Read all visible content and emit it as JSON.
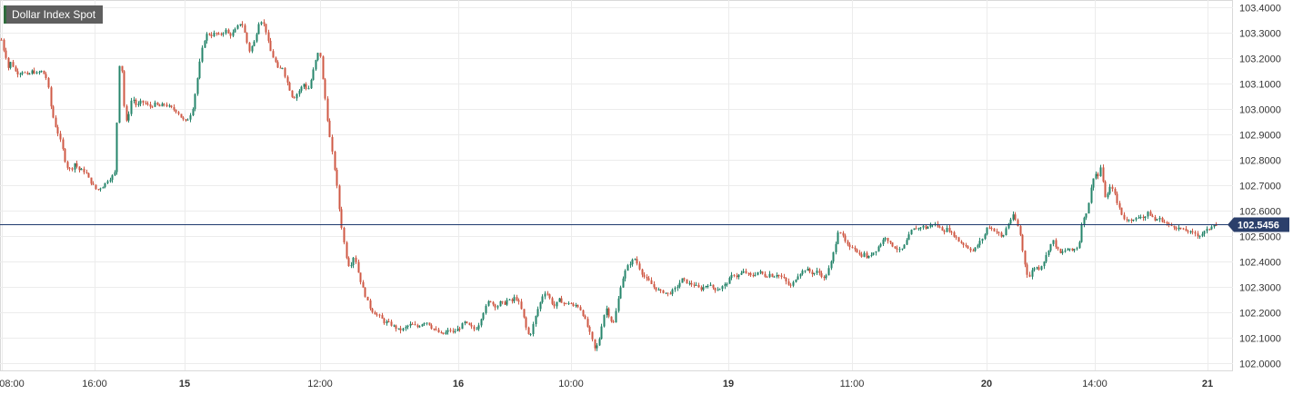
{
  "symbol": "Dollar Index Spot",
  "current_price_label": "102.5456",
  "colors": {
    "up": "#26856b",
    "down": "#cf5945",
    "price_line": "#1f3a6e",
    "grid": "#ececec",
    "label_bg": "#2b3f6b"
  },
  "chart_data": {
    "type": "candlestick",
    "title": "Dollar Index Spot",
    "xlabel": "",
    "ylabel": "",
    "ylim": [
      101.97,
      103.43
    ],
    "current_price": 102.5456,
    "y_ticks": [
      "103.4000",
      "103.3000",
      "103.2000",
      "103.1000",
      "103.0000",
      "102.9000",
      "102.8000",
      "102.7000",
      "102.6000",
      "102.5000",
      "102.4000",
      "102.3000",
      "102.2000",
      "102.1000",
      "102.0000"
    ],
    "x_ticks": [
      {
        "label": "08:00",
        "bold": false
      },
      {
        "label": "16:00",
        "bold": false
      },
      {
        "label": "15",
        "bold": true
      },
      {
        "label": "12:00",
        "bold": false
      },
      {
        "label": "16",
        "bold": true
      },
      {
        "label": "10:00",
        "bold": false
      },
      {
        "label": "19",
        "bold": true
      },
      {
        "label": "11:00",
        "bold": false
      },
      {
        "label": "20",
        "bold": true
      },
      {
        "label": "14:00",
        "bold": false
      },
      {
        "label": "21",
        "bold": true
      }
    ],
    "close_path": [
      [
        0,
        103.29
      ],
      [
        3,
        103.24
      ],
      [
        6,
        103.21
      ],
      [
        9,
        103.16
      ],
      [
        12,
        103.19
      ],
      [
        16,
        103.15
      ],
      [
        20,
        103.14
      ],
      [
        25,
        103.15
      ],
      [
        30,
        103.13
      ],
      [
        35,
        103.15
      ],
      [
        40,
        103.14
      ],
      [
        45,
        103.15
      ],
      [
        50,
        103.13
      ],
      [
        53,
        103.08
      ],
      [
        56,
        103.0
      ],
      [
        60,
        102.94
      ],
      [
        64,
        102.9
      ],
      [
        68,
        102.85
      ],
      [
        71,
        102.8
      ],
      [
        74,
        102.77
      ],
      [
        78,
        102.76
      ],
      [
        82,
        102.79
      ],
      [
        86,
        102.76
      ],
      [
        90,
        102.76
      ],
      [
        94,
        102.75
      ],
      [
        98,
        102.72
      ],
      [
        102,
        102.7
      ],
      [
        106,
        102.68
      ],
      [
        110,
        102.69
      ],
      [
        114,
        102.7
      ],
      [
        118,
        102.72
      ],
      [
        122,
        102.73
      ],
      [
        126,
        102.75
      ],
      [
        128,
        102.88
      ],
      [
        129,
        103.05
      ],
      [
        130,
        103.15
      ],
      [
        132,
        103.2
      ],
      [
        134,
        103.14
      ],
      [
        136,
        103.02
      ],
      [
        138,
        102.95
      ],
      [
        140,
        102.95
      ],
      [
        142,
        103.0
      ],
      [
        145,
        103.05
      ],
      [
        150,
        103.01
      ],
      [
        155,
        103.03
      ],
      [
        160,
        103.02
      ],
      [
        165,
        103.01
      ],
      [
        170,
        103.02
      ],
      [
        175,
        103.01
      ],
      [
        180,
        103.02
      ],
      [
        185,
        103.01
      ],
      [
        190,
        103.0
      ],
      [
        195,
        102.99
      ],
      [
        200,
        102.96
      ],
      [
        204,
        102.95
      ],
      [
        208,
        102.97
      ],
      [
        212,
        103.01
      ],
      [
        215,
        103.08
      ],
      [
        218,
        103.15
      ],
      [
        221,
        103.22
      ],
      [
        224,
        103.27
      ],
      [
        228,
        103.3
      ],
      [
        232,
        103.29
      ],
      [
        236,
        103.3
      ],
      [
        240,
        103.29
      ],
      [
        244,
        103.3
      ],
      [
        248,
        103.31
      ],
      [
        252,
        103.29
      ],
      [
        256,
        103.3
      ],
      [
        260,
        103.32
      ],
      [
        264,
        103.34
      ],
      [
        267,
        103.33
      ],
      [
        270,
        103.28
      ],
      [
        274,
        103.23
      ],
      [
        277,
        103.25
      ],
      [
        280,
        103.27
      ],
      [
        284,
        103.34
      ],
      [
        288,
        103.35
      ],
      [
        292,
        103.31
      ],
      [
        295,
        103.26
      ],
      [
        298,
        103.22
      ],
      [
        302,
        103.19
      ],
      [
        306,
        103.15
      ],
      [
        310,
        103.17
      ],
      [
        314,
        103.12
      ],
      [
        318,
        103.08
      ],
      [
        322,
        103.04
      ],
      [
        326,
        103.06
      ],
      [
        330,
        103.08
      ],
      [
        334,
        103.1
      ],
      [
        338,
        103.07
      ],
      [
        342,
        103.12
      ],
      [
        346,
        103.18
      ],
      [
        349,
        103.22
      ],
      [
        352,
        103.21
      ],
      [
        355,
        103.1
      ],
      [
        358,
        103.02
      ],
      [
        361,
        102.92
      ],
      [
        364,
        102.85
      ],
      [
        367,
        102.78
      ],
      [
        370,
        102.7
      ],
      [
        373,
        102.6
      ],
      [
        376,
        102.52
      ],
      [
        379,
        102.45
      ],
      [
        382,
        102.39
      ],
      [
        385,
        102.38
      ],
      [
        388,
        102.42
      ],
      [
        391,
        102.4
      ],
      [
        394,
        102.35
      ],
      [
        398,
        102.3
      ],
      [
        402,
        102.26
      ],
      [
        406,
        102.22
      ],
      [
        410,
        102.2
      ],
      [
        414,
        102.19
      ],
      [
        418,
        102.18
      ],
      [
        422,
        102.16
      ],
      [
        426,
        102.16
      ],
      [
        430,
        102.15
      ],
      [
        434,
        102.14
      ],
      [
        438,
        102.13
      ],
      [
        442,
        102.13
      ],
      [
        446,
        102.14
      ],
      [
        450,
        102.15
      ],
      [
        454,
        102.15
      ],
      [
        458,
        102.14
      ],
      [
        462,
        102.15
      ],
      [
        466,
        102.16
      ],
      [
        470,
        102.16
      ],
      [
        474,
        102.14
      ],
      [
        478,
        102.13
      ],
      [
        482,
        102.12
      ],
      [
        486,
        102.11
      ],
      [
        490,
        102.12
      ],
      [
        494,
        102.13
      ],
      [
        498,
        102.12
      ],
      [
        502,
        102.13
      ],
      [
        506,
        102.14
      ],
      [
        510,
        102.16
      ],
      [
        514,
        102.15
      ],
      [
        518,
        102.14
      ],
      [
        522,
        102.13
      ],
      [
        526,
        102.15
      ],
      [
        530,
        102.19
      ],
      [
        534,
        102.22
      ],
      [
        538,
        102.25
      ],
      [
        542,
        102.23
      ],
      [
        546,
        102.22
      ],
      [
        550,
        102.24
      ],
      [
        554,
        102.23
      ],
      [
        558,
        102.25
      ],
      [
        562,
        102.24
      ],
      [
        566,
        102.26
      ],
      [
        570,
        102.24
      ],
      [
        574,
        102.2
      ],
      [
        578,
        102.14
      ],
      [
        582,
        102.1
      ],
      [
        586,
        102.15
      ],
      [
        590,
        102.2
      ],
      [
        594,
        102.24
      ],
      [
        598,
        102.28
      ],
      [
        602,
        102.27
      ],
      [
        606,
        102.24
      ],
      [
        610,
        102.22
      ],
      [
        614,
        102.25
      ],
      [
        618,
        102.24
      ],
      [
        622,
        102.23
      ],
      [
        626,
        102.24
      ],
      [
        630,
        102.22
      ],
      [
        634,
        102.23
      ],
      [
        638,
        102.21
      ],
      [
        642,
        102.18
      ],
      [
        646,
        102.14
      ],
      [
        650,
        102.1
      ],
      [
        654,
        102.05
      ],
      [
        658,
        102.08
      ],
      [
        662,
        102.16
      ],
      [
        666,
        102.22
      ],
      [
        670,
        102.18
      ],
      [
        674,
        102.15
      ],
      [
        678,
        102.22
      ],
      [
        682,
        102.3
      ],
      [
        686,
        102.35
      ],
      [
        690,
        102.38
      ],
      [
        694,
        102.4
      ],
      [
        698,
        102.41
      ],
      [
        702,
        102.38
      ],
      [
        706,
        102.35
      ],
      [
        710,
        102.33
      ],
      [
        714,
        102.32
      ],
      [
        718,
        102.3
      ],
      [
        722,
        102.29
      ],
      [
        726,
        102.28
      ],
      [
        730,
        102.28
      ],
      [
        734,
        102.27
      ],
      [
        738,
        102.28
      ],
      [
        742,
        102.29
      ],
      [
        746,
        102.31
      ],
      [
        750,
        102.33
      ],
      [
        754,
        102.32
      ],
      [
        758,
        102.31
      ],
      [
        762,
        102.31
      ],
      [
        766,
        102.3
      ],
      [
        770,
        102.29
      ],
      [
        774,
        102.3
      ],
      [
        778,
        102.31
      ],
      [
        782,
        102.3
      ],
      [
        786,
        102.29
      ],
      [
        790,
        102.29
      ],
      [
        794,
        102.3
      ],
      [
        798,
        102.31
      ],
      [
        802,
        102.33
      ],
      [
        806,
        102.35
      ],
      [
        810,
        102.34
      ],
      [
        814,
        102.35
      ],
      [
        818,
        102.36
      ],
      [
        822,
        102.35
      ],
      [
        826,
        102.34
      ],
      [
        830,
        102.35
      ],
      [
        834,
        102.36
      ],
      [
        838,
        102.35
      ],
      [
        842,
        102.34
      ],
      [
        846,
        102.35
      ],
      [
        850,
        102.34
      ],
      [
        854,
        102.35
      ],
      [
        858,
        102.34
      ],
      [
        862,
        102.33
      ],
      [
        866,
        102.31
      ],
      [
        870,
        102.3
      ],
      [
        874,
        102.33
      ],
      [
        878,
        102.35
      ],
      [
        882,
        102.36
      ],
      [
        886,
        102.37
      ],
      [
        890,
        102.36
      ],
      [
        894,
        102.35
      ],
      [
        898,
        102.36
      ],
      [
        902,
        102.35
      ],
      [
        906,
        102.33
      ],
      [
        910,
        102.36
      ],
      [
        914,
        102.4
      ],
      [
        918,
        102.46
      ],
      [
        922,
        102.53
      ],
      [
        926,
        102.5
      ],
      [
        930,
        102.47
      ],
      [
        934,
        102.45
      ],
      [
        938,
        102.46
      ],
      [
        942,
        102.44
      ],
      [
        946,
        102.42
      ],
      [
        950,
        102.43
      ],
      [
        954,
        102.41
      ],
      [
        958,
        102.43
      ],
      [
        962,
        102.44
      ],
      [
        966,
        102.46
      ],
      [
        970,
        102.48
      ],
      [
        974,
        102.5
      ],
      [
        978,
        102.47
      ],
      [
        982,
        102.46
      ],
      [
        986,
        102.45
      ],
      [
        990,
        102.44
      ],
      [
        994,
        102.46
      ],
      [
        998,
        102.49
      ],
      [
        1002,
        102.52
      ],
      [
        1006,
        102.53
      ],
      [
        1010,
        102.53
      ],
      [
        1014,
        102.54
      ],
      [
        1018,
        102.53
      ],
      [
        1022,
        102.54
      ],
      [
        1026,
        102.55
      ],
      [
        1030,
        102.54
      ],
      [
        1034,
        102.53
      ],
      [
        1038,
        102.52
      ],
      [
        1042,
        102.53
      ],
      [
        1046,
        102.51
      ],
      [
        1050,
        102.5
      ],
      [
        1054,
        102.48
      ],
      [
        1058,
        102.47
      ],
      [
        1062,
        102.46
      ],
      [
        1066,
        102.45
      ],
      [
        1070,
        102.44
      ],
      [
        1074,
        102.46
      ],
      [
        1078,
        102.48
      ],
      [
        1082,
        102.5
      ],
      [
        1086,
        102.54
      ],
      [
        1090,
        102.53
      ],
      [
        1094,
        102.52
      ],
      [
        1098,
        102.51
      ],
      [
        1102,
        102.49
      ],
      [
        1106,
        102.53
      ],
      [
        1110,
        102.56
      ],
      [
        1114,
        102.58
      ],
      [
        1118,
        102.55
      ],
      [
        1122,
        102.5
      ],
      [
        1125,
        102.42
      ],
      [
        1128,
        102.37
      ],
      [
        1131,
        102.33
      ],
      [
        1134,
        102.36
      ],
      [
        1138,
        102.38
      ],
      [
        1142,
        102.37
      ],
      [
        1146,
        102.39
      ],
      [
        1150,
        102.42
      ],
      [
        1154,
        102.46
      ],
      [
        1158,
        102.48
      ],
      [
        1162,
        102.45
      ],
      [
        1166,
        102.43
      ],
      [
        1170,
        102.44
      ],
      [
        1174,
        102.45
      ],
      [
        1178,
        102.44
      ],
      [
        1182,
        102.45
      ],
      [
        1186,
        102.46
      ],
      [
        1189,
        102.55
      ],
      [
        1192,
        102.57
      ],
      [
        1195,
        102.6
      ],
      [
        1198,
        102.65
      ],
      [
        1201,
        102.72
      ],
      [
        1204,
        102.75
      ],
      [
        1207,
        102.73
      ],
      [
        1210,
        102.77
      ],
      [
        1213,
        102.7
      ],
      [
        1216,
        102.64
      ],
      [
        1219,
        102.68
      ],
      [
        1222,
        102.7
      ],
      [
        1225,
        102.67
      ],
      [
        1228,
        102.63
      ],
      [
        1231,
        102.61
      ],
      [
        1234,
        102.58
      ],
      [
        1238,
        102.56
      ],
      [
        1242,
        102.57
      ],
      [
        1246,
        102.56
      ],
      [
        1250,
        102.57
      ],
      [
        1254,
        102.58
      ],
      [
        1258,
        102.57
      ],
      [
        1262,
        102.59
      ],
      [
        1266,
        102.58
      ],
      [
        1270,
        102.56
      ],
      [
        1274,
        102.57
      ],
      [
        1278,
        102.56
      ],
      [
        1282,
        102.55
      ],
      [
        1286,
        102.54
      ],
      [
        1290,
        102.54
      ],
      [
        1294,
        102.53
      ],
      [
        1298,
        102.53
      ],
      [
        1302,
        102.52
      ],
      [
        1306,
        102.52
      ],
      [
        1310,
        102.51
      ],
      [
        1314,
        102.51
      ],
      [
        1318,
        102.5
      ],
      [
        1322,
        102.51
      ],
      [
        1326,
        102.52
      ],
      [
        1330,
        102.53
      ],
      [
        1334,
        102.55
      ],
      [
        1338,
        102.54
      ]
    ]
  }
}
